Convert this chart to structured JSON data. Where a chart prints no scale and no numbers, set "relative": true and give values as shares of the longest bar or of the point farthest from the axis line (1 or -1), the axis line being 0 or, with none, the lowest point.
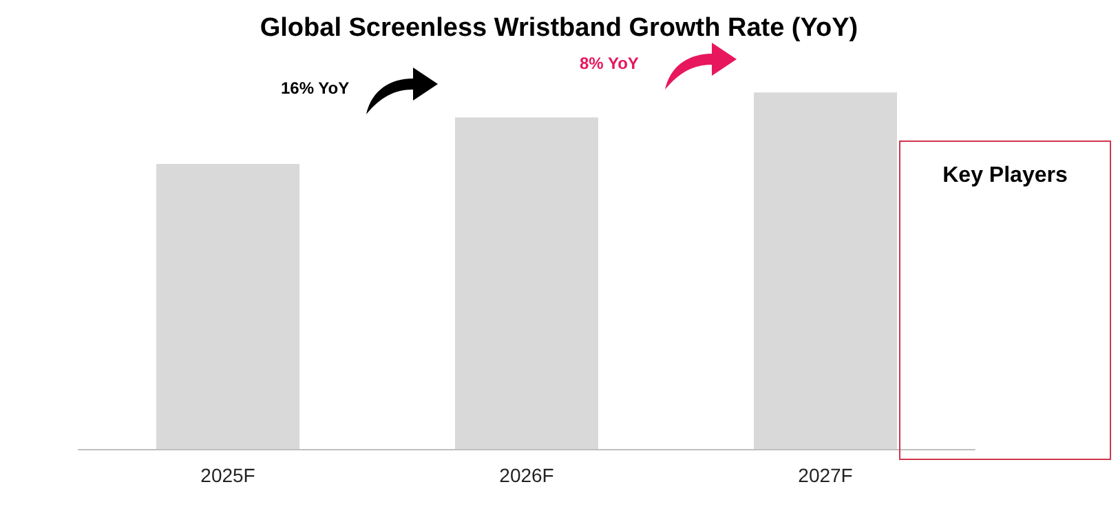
{
  "chart_data": [
    {
      "type": "bar",
      "title": "Global Screenless Wristband Growth Rate (YoY)",
      "categories": [
        "2025F",
        "2026F",
        "2027F"
      ],
      "values": [
        0.8,
        0.93,
        1
      ],
      "color": "#d9d9d9",
      "relative": true,
      "annotations": [
        "16% YoY",
        "8% YoY"
      ]
    },
    {
      "type": "other",
      "title": "Key Players"
    }
  ]
}
